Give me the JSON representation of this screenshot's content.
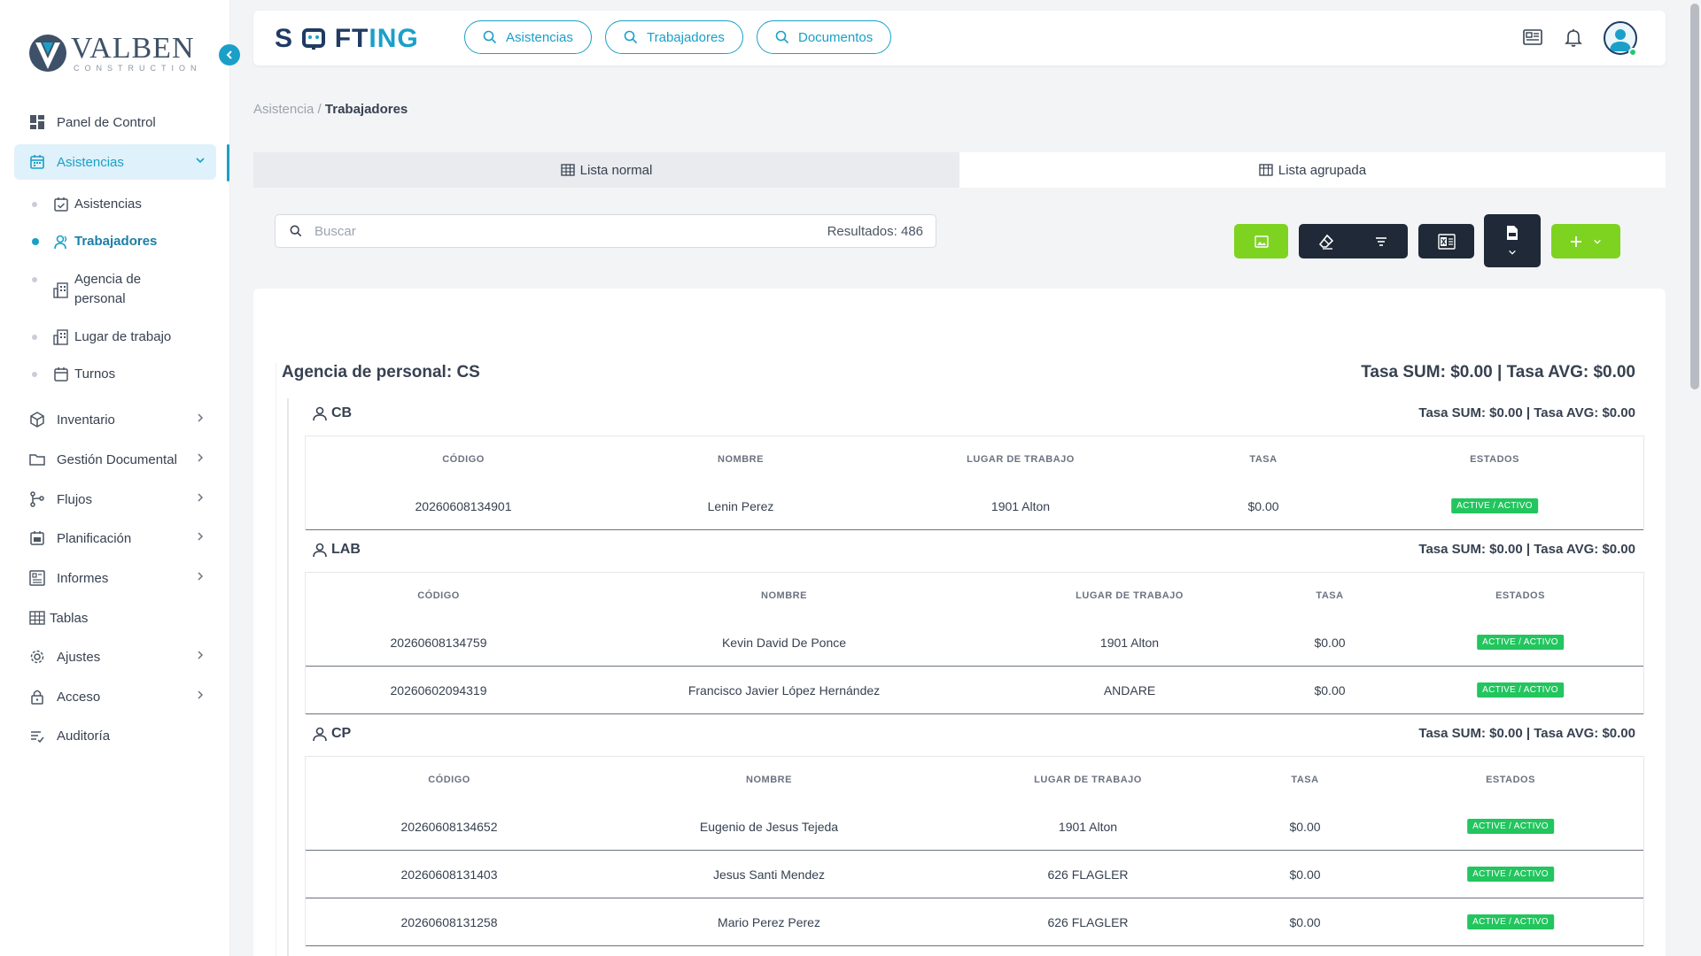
{
  "app": {
    "logo_main": "VALBEN",
    "logo_sub": "CONSTRUCTION",
    "brand_part1": "S",
    "brand_part2": "FT",
    "brand_part3": "ING"
  },
  "topbar": {
    "pills": [
      "Asistencias",
      "Trabajadores",
      "Documentos"
    ]
  },
  "sidebar": {
    "items": [
      {
        "label": "Panel de Control",
        "icon": "dashboard-icon"
      },
      {
        "label": "Asistencias",
        "icon": "calendar-icon"
      },
      {
        "label": "Inventario",
        "icon": "box-icon"
      },
      {
        "label": "Gestión Documental",
        "icon": "folder-icon"
      },
      {
        "label": "Flujos",
        "icon": "flow-icon"
      },
      {
        "label": "Planificación",
        "icon": "calendar-plan-icon"
      },
      {
        "label": "Informes",
        "icon": "report-icon"
      },
      {
        "label": "Tablas",
        "icon": "table-icon"
      },
      {
        "label": "Ajustes",
        "icon": "gear-icon"
      },
      {
        "label": "Acceso",
        "icon": "lock-icon"
      },
      {
        "label": "Auditoría",
        "icon": "audit-icon"
      }
    ],
    "sub_items": [
      {
        "label": "Asistencias"
      },
      {
        "label": "Trabajadores"
      },
      {
        "label": "Agencia de personal"
      },
      {
        "label": "Lugar de trabajo"
      },
      {
        "label": "Turnos"
      }
    ]
  },
  "breadcrumb": {
    "parent": "Asistencia",
    "sep": " / ",
    "current": "Trabajadores"
  },
  "tabs": {
    "normal": "Lista normal",
    "grouped": "Lista agrupada"
  },
  "search": {
    "placeholder": "Buscar",
    "results": "Resultados: 486"
  },
  "group": {
    "title": "Agencia de personal: CS",
    "stats": "Tasa SUM: $0.00 | Tasa AVG: $0.00",
    "columns": [
      "CÓDIGO",
      "NOMBRE",
      "LUGAR DE TRABAJO",
      "TASA",
      "ESTADOS"
    ],
    "subgroups": [
      {
        "name": "CB",
        "stats": "Tasa SUM: $0.00 | Tasa AVG: $0.00",
        "rows": [
          {
            "codigo": "20260608134901",
            "nombre": "Lenin Perez",
            "lugar": "1901 Alton",
            "tasa": "$0.00",
            "estado": "ACTIVE / ACTIVO"
          }
        ]
      },
      {
        "name": "LAB",
        "stats": "Tasa SUM: $0.00 | Tasa AVG: $0.00",
        "rows": [
          {
            "codigo": "20260608134759",
            "nombre": "Kevin David De Ponce",
            "lugar": "1901 Alton",
            "tasa": "$0.00",
            "estado": "ACTIVE / ACTIVO"
          },
          {
            "codigo": "20260602094319",
            "nombre": "Francisco Javier López Hernández",
            "lugar": "ANDARE",
            "tasa": "$0.00",
            "estado": "ACTIVE / ACTIVO"
          }
        ]
      },
      {
        "name": "CP",
        "stats": "Tasa SUM: $0.00 | Tasa AVG: $0.00",
        "rows": [
          {
            "codigo": "20260608134652",
            "nombre": "Eugenio de Jesus Tejeda",
            "lugar": "1901 Alton",
            "tasa": "$0.00",
            "estado": "ACTIVE / ACTIVO"
          },
          {
            "codigo": "20260608131403",
            "nombre": "Jesus Santi Mendez",
            "lugar": "626 FLAGLER",
            "tasa": "$0.00",
            "estado": "ACTIVE / ACTIVO"
          },
          {
            "codigo": "20260608131258",
            "nombre": "Mario Perez Perez",
            "lugar": "626 FLAGLER",
            "tasa": "$0.00",
            "estado": "ACTIVE / ACTIVO"
          }
        ]
      }
    ]
  },
  "colors": {
    "accent": "#1aa0c8",
    "brand_dark": "#1f3b63",
    "green": "#7ed321",
    "badge": "#22c55e"
  }
}
